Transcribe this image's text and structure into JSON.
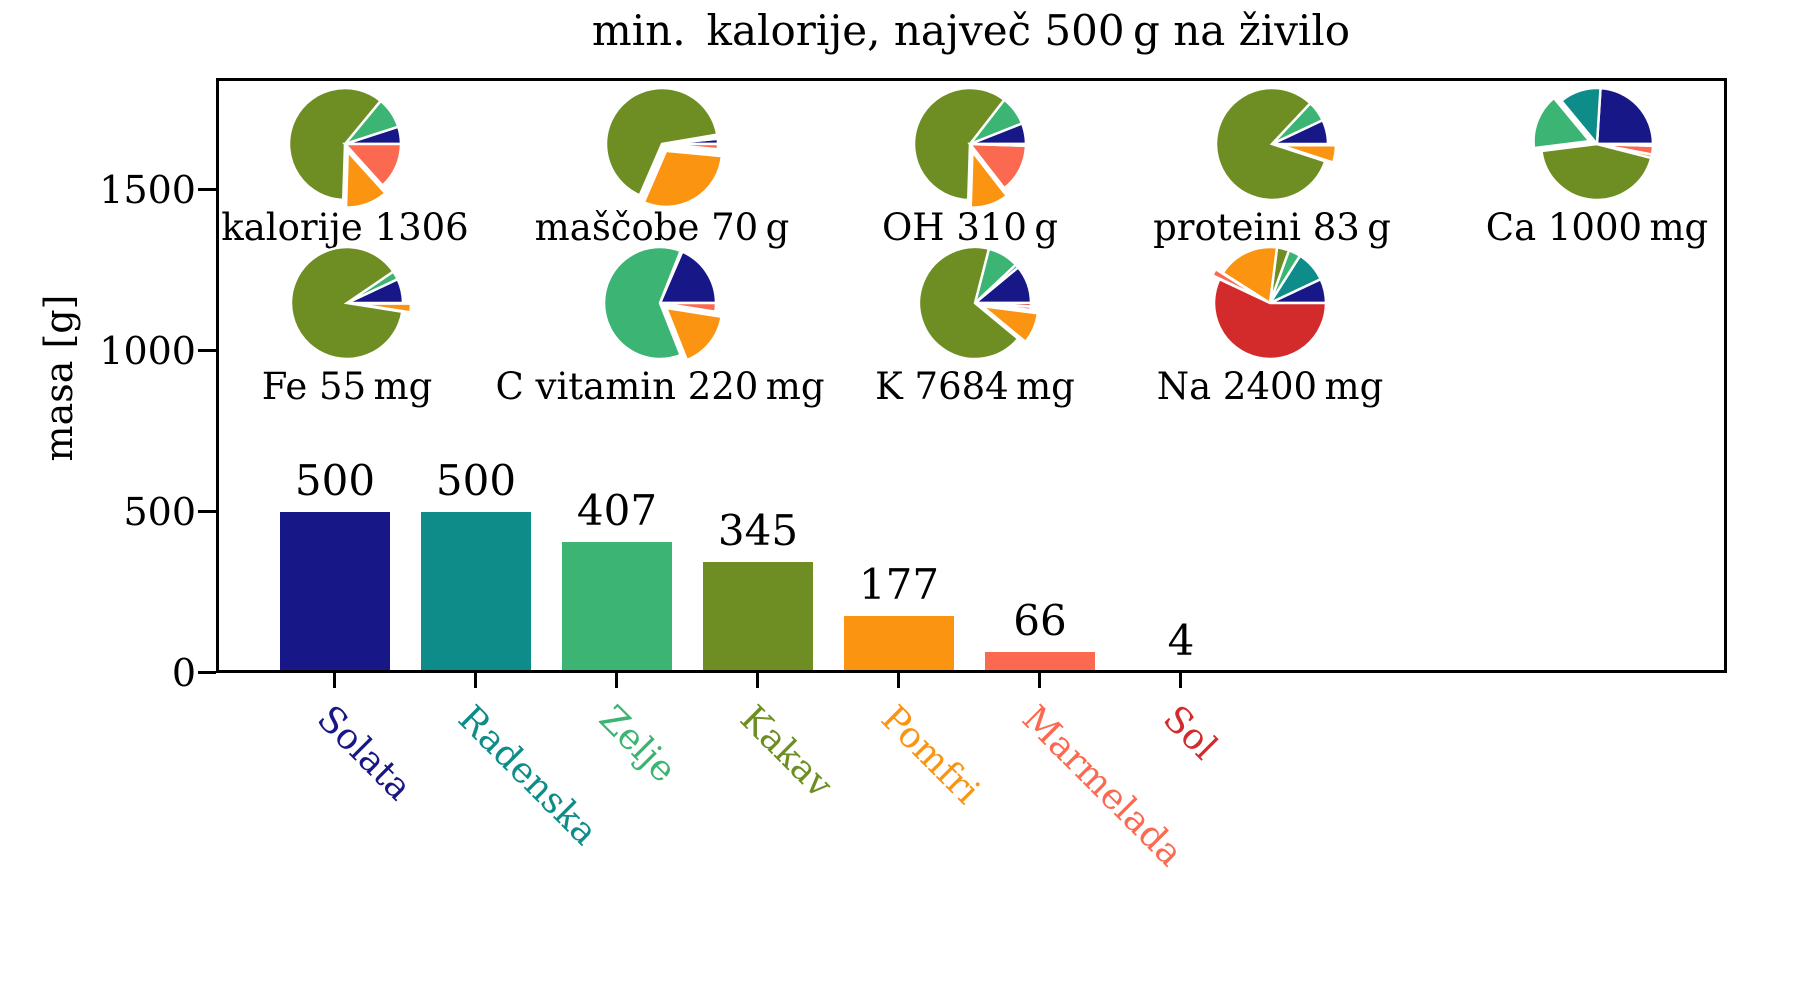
{
  "title": "min. kalorije, največ 500 g na živilo",
  "axes": {
    "ylabel": "masa [g]",
    "yticks": [
      0,
      500,
      1000,
      1500
    ]
  },
  "foods": [
    {
      "name": "Solata",
      "color": "#171787"
    },
    {
      "name": "Radenska",
      "color": "#0e8c8a"
    },
    {
      "name": "Zelje",
      "color": "#3cb473"
    },
    {
      "name": "Kakav",
      "color": "#6e8e23"
    },
    {
      "name": "Pomfri",
      "color": "#fa9411"
    },
    {
      "name": "Marmelada",
      "color": "#fa6950"
    },
    {
      "name": "Sol",
      "color": "#d32b2b"
    }
  ],
  "chart_data": {
    "type": "bar",
    "title": "min. kalorije, največ 500 g na živilo",
    "xlabel": "",
    "ylabel": "masa [g]",
    "ylim": [
      0,
      1850
    ],
    "grid": false,
    "categories": [
      "Solata",
      "Radenska",
      "Zelje",
      "Kakav",
      "Pomfri",
      "Marmelada",
      "Sol"
    ],
    "values": [
      500,
      500,
      407,
      345,
      177,
      66,
      4
    ],
    "bar_colors": [
      "#171787",
      "#0e8c8a",
      "#3cb473",
      "#6e8e23",
      "#fa9411",
      "#fa6950",
      "#d32b2b"
    ],
    "pies": [
      {
        "label": "kalorije 1306",
        "shares_pct": [
          5,
          0,
          9,
          60.5,
          12.2,
          13.3,
          0
        ],
        "exploded": "Pomfri"
      },
      {
        "label": "maščobe 70 g",
        "shares_pct": [
          1.5,
          0.7,
          0.5,
          65.8,
          30,
          1.5,
          0
        ],
        "exploded": "Pomfri"
      },
      {
        "label": "OH 310 g",
        "shares_pct": [
          6,
          0,
          8.5,
          60,
          11,
          14,
          0.5
        ],
        "exploded": "Pomfri"
      },
      {
        "label": "proteini 83 g",
        "shares_pct": [
          7,
          0,
          6,
          82,
          5,
          0,
          0
        ],
        "exploded": "Pomfri"
      },
      {
        "label": "Ca 1000 mg",
        "shares_pct": [
          24,
          12,
          16,
          44,
          1,
          2.5,
          0.5
        ],
        "exploded": "Zelje"
      },
      {
        "label": "Fe 55 mg",
        "shares_pct": [
          7,
          0,
          2.5,
          88,
          2.5,
          0,
          0
        ],
        "exploded": "Pomfri"
      },
      {
        "label": "C vitamin 220 mg",
        "shares_pct": [
          18.5,
          0.5,
          62,
          0,
          16.5,
          2.5,
          0
        ],
        "exploded": "Pomfri"
      },
      {
        "label": "K 7684 mg",
        "shares_pct": [
          11,
          1,
          9,
          68,
          9,
          1,
          1
        ],
        "exploded": "Pomfri"
      },
      {
        "label": "Na 2400 mg",
        "shares_pct": [
          7,
          9,
          3.5,
          3.5,
          18,
          2,
          57
        ],
        "exploded": "Marmelada"
      }
    ]
  }
}
